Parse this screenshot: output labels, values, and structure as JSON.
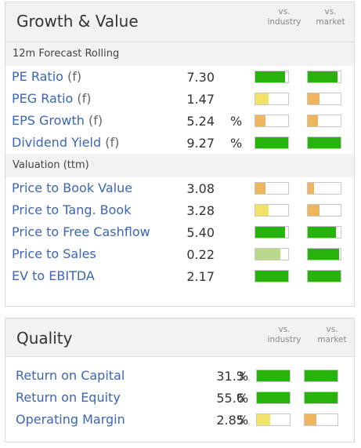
{
  "colors": {
    "green": "#27b20c",
    "light_green": "#b8d98a",
    "yellow": "#f1e36a",
    "orange": "#efb45e"
  },
  "growth_value": {
    "title": "Growth & Value",
    "col_industry": "vs.\nindustry",
    "col_market": "vs.\nmarket",
    "forecast_section": "12m Forecast Rolling",
    "forecast_rows": [
      {
        "label": "PE Ratio",
        "suffix": "(f)",
        "value": "7.30",
        "unit": "",
        "industry": {
          "level": 0.9,
          "color": "green"
        },
        "market": {
          "level": 0.9,
          "color": "green"
        }
      },
      {
        "label": "PEG Ratio",
        "suffix": "(f)",
        "value": "1.47",
        "unit": "",
        "industry": {
          "level": 0.4,
          "color": "yellow"
        },
        "market": {
          "level": 0.35,
          "color": "orange"
        }
      },
      {
        "label": "EPS Growth",
        "suffix": "(f)",
        "value": "5.24",
        "unit": "%",
        "industry": {
          "level": 0.3,
          "color": "orange"
        },
        "market": {
          "level": 0.3,
          "color": "orange"
        }
      },
      {
        "label": "Dividend Yield",
        "suffix": "(f)",
        "value": "9.27",
        "unit": "%",
        "industry": {
          "level": 1.0,
          "color": "green"
        },
        "market": {
          "level": 1.0,
          "color": "green"
        }
      }
    ],
    "valuation_section": "Valuation (ttm)",
    "valuation_rows": [
      {
        "label": "Price to Book Value",
        "suffix": "",
        "value": "3.08",
        "unit": "",
        "industry": {
          "level": 0.3,
          "color": "orange"
        },
        "market": {
          "level": 0.2,
          "color": "orange"
        }
      },
      {
        "label": "Price to Tang. Book",
        "suffix": "",
        "value": "3.28",
        "unit": "",
        "industry": {
          "level": 0.4,
          "color": "yellow"
        },
        "market": {
          "level": 0.35,
          "color": "orange"
        }
      },
      {
        "label": "Price to Free Cashflow",
        "suffix": "",
        "value": "5.40",
        "unit": "",
        "industry": {
          "level": 0.9,
          "color": "green"
        },
        "market": {
          "level": 0.85,
          "color": "green"
        }
      },
      {
        "label": "Price to Sales",
        "suffix": "",
        "value": "0.22",
        "unit": "",
        "industry": {
          "level": 0.75,
          "color": "light_green"
        },
        "market": {
          "level": 0.95,
          "color": "green"
        }
      },
      {
        "label": "EV to EBITDA",
        "suffix": "",
        "value": "2.17",
        "unit": "",
        "industry": {
          "level": 1.0,
          "color": "green"
        },
        "market": {
          "level": 1.0,
          "color": "green"
        }
      }
    ]
  },
  "quality": {
    "title": "Quality",
    "col_industry": "vs.\nindustry",
    "col_market": "vs.\nmarket",
    "rows": [
      {
        "label": "Return on Capital",
        "suffix": "",
        "value": "31.3",
        "unit": "%",
        "industry": {
          "level": 1.0,
          "color": "green"
        },
        "market": {
          "level": 1.0,
          "color": "green"
        }
      },
      {
        "label": "Return on Equity",
        "suffix": "",
        "value": "55.6",
        "unit": "%",
        "industry": {
          "level": 1.0,
          "color": "green"
        },
        "market": {
          "level": 1.0,
          "color": "green"
        }
      },
      {
        "label": "Operating Margin",
        "suffix": "",
        "value": "2.85",
        "unit": "%",
        "industry": {
          "level": 0.4,
          "color": "yellow"
        },
        "market": {
          "level": 0.35,
          "color": "orange"
        }
      }
    ]
  }
}
